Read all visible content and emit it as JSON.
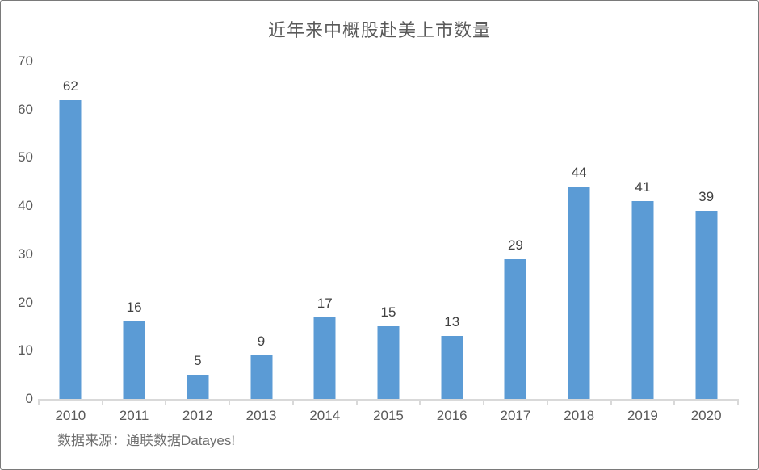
{
  "title": "近年来中概股赴美上市数量",
  "source_note": "数据来源：通联数据Datayes!",
  "colors": {
    "bar": "#5B9BD5",
    "axis_line": "#D9D9D9",
    "title_text": "#595959",
    "axis_text": "#595959",
    "value_label_text": "#404040",
    "source_text": "#6E6E6E"
  },
  "chart_data": {
    "type": "bar",
    "title": "近年来中概股赴美上市数量",
    "categories": [
      "2010",
      "2011",
      "2012",
      "2013",
      "2014",
      "2015",
      "2016",
      "2017",
      "2018",
      "2019",
      "2020"
    ],
    "values": [
      62,
      16,
      5,
      9,
      17,
      15,
      13,
      29,
      44,
      41,
      39
    ],
    "xlabel": "",
    "ylabel": "",
    "ylim": [
      0,
      70
    ],
    "yticks": [
      0,
      10,
      20,
      30,
      40,
      50,
      60,
      70
    ],
    "grid": false,
    "legend": "none",
    "value_labels": "above-bars",
    "source": "数据来源：通联数据Datayes!"
  }
}
